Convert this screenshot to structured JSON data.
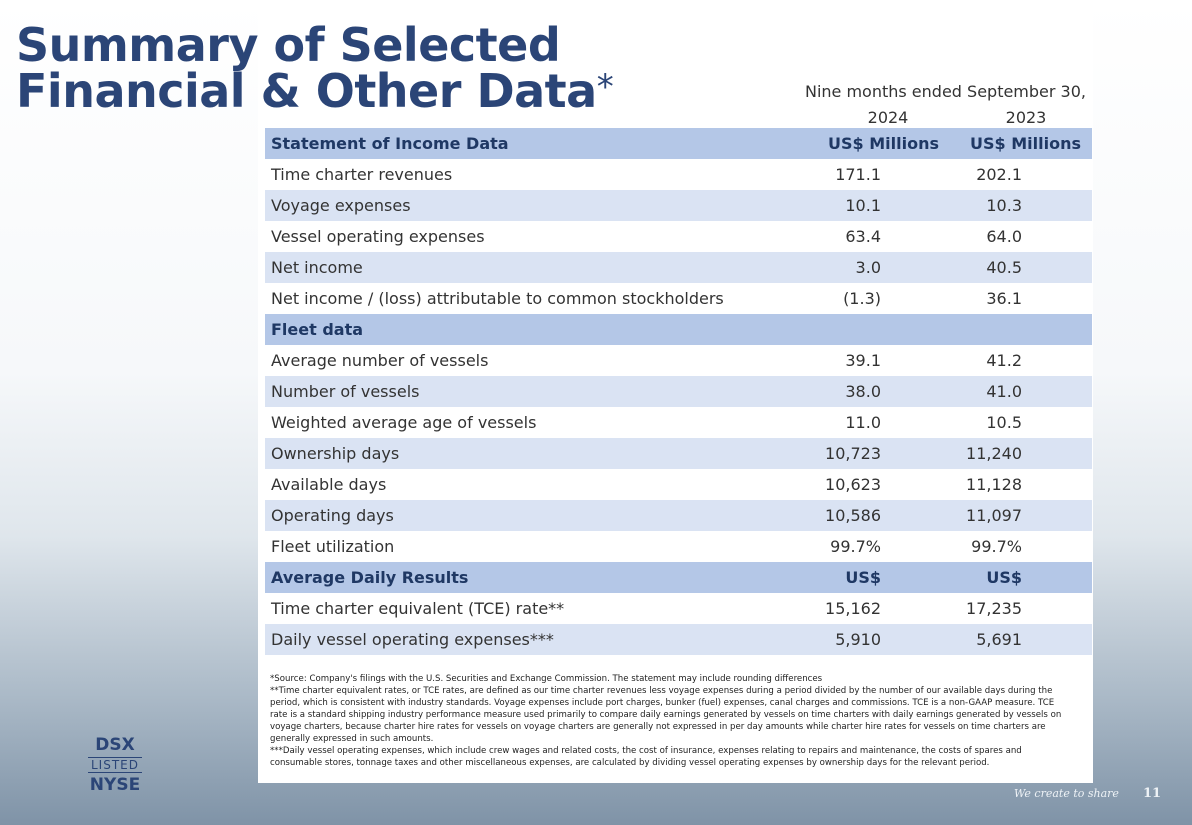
{
  "title_lines": [
    "Summary of Selected",
    "Financial & Other Data"
  ],
  "title_mark": "*",
  "period": {
    "label": "Nine months ended September 30,",
    "years": [
      "2024",
      "2023"
    ]
  },
  "table": {
    "sections": [
      {
        "header": [
          "Statement of Income Data",
          "US$ Millions",
          "US$ Millions"
        ],
        "rows": [
          [
            "Time charter revenues",
            "171.1",
            "202.1"
          ],
          [
            "Voyage expenses",
            "10.1",
            "10.3"
          ],
          [
            "Vessel operating expenses",
            "63.4",
            "64.0"
          ],
          [
            "Net income",
            "3.0",
            "40.5"
          ],
          [
            "Net income / (loss) attributable to common stockholders",
            "(1.3)",
            "36.1"
          ]
        ]
      },
      {
        "header": [
          "Fleet data",
          "",
          ""
        ],
        "rows": [
          [
            "Average number of vessels",
            "39.1",
            "41.2"
          ],
          [
            "Number of vessels",
            "38.0",
            "41.0"
          ],
          [
            "Weighted average age of vessels",
            "11.0",
            "10.5"
          ],
          [
            "Ownership days",
            "10,723",
            "11,240"
          ],
          [
            "Available days",
            "10,623",
            "11,128"
          ],
          [
            "Operating days",
            "10,586",
            "11,097"
          ],
          [
            "Fleet utilization",
            "99.7%",
            "99.7%"
          ]
        ]
      },
      {
        "header": [
          "Average Daily Results",
          "US$",
          "US$"
        ],
        "rows": [
          [
            "Time charter equivalent (TCE) rate**",
            "15,162",
            "17,235"
          ],
          [
            "Daily vessel operating expenses***",
            "5,910",
            "5,691"
          ]
        ]
      }
    ]
  },
  "footnotes": [
    "*Source: Company's filings with the U.S. Securities and Exchange Commission. The statement may include rounding differences",
    "**Time charter equivalent rates, or TCE rates, are defined as our time charter revenues less voyage expenses during a period divided by the number of our available days during the period, which is consistent with industry standards.  Voyage expenses include port charges, bunker (fuel) expenses, canal charges and commissions.  TCE is a non-GAAP measure.  TCE rate is a standard shipping industry performance measure used primarily to compare daily earnings generated by vessels on time charters with daily earnings generated by vessels on voyage charters, because charter hire rates for vessels on voyage charters are generally not expressed in per day amounts while charter hire rates for vessels on time charters are generally expressed in such amounts.",
    "***Daily vessel operating expenses, which include crew wages and related costs, the cost of insurance, expenses relating to repairs and maintenance, the costs of spares and consumable stores, tonnage taxes and other miscellaneous expenses, are calculated by dividing vessel operating expenses by ownership days for the relevant period."
  ],
  "logo": [
    "DSX",
    "LISTED",
    "NYSE"
  ],
  "footer": {
    "tagline": "We create to share",
    "page": "11"
  }
}
